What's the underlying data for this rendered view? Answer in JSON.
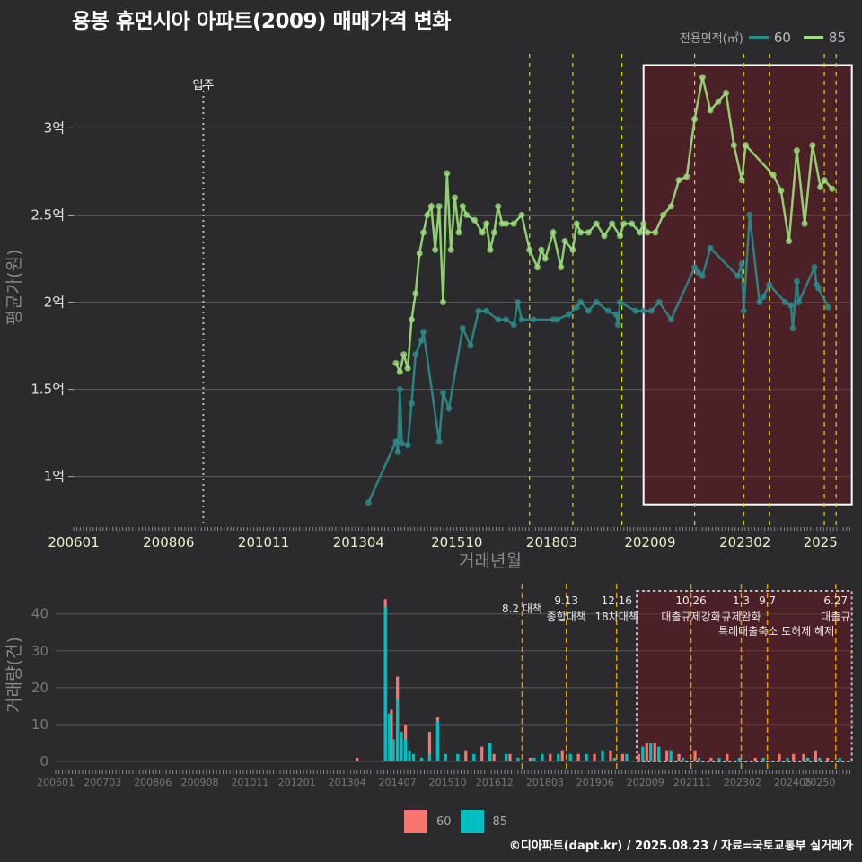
{
  "title": "용봉 휴먼시아 아파트(2009) 매매가격 변화",
  "legend_top": {
    "title": "전용면적(㎡)",
    "items": [
      {
        "label": "60",
        "color": "#2a8c8c"
      },
      {
        "label": "85",
        "color": "#9be07a"
      }
    ]
  },
  "legend_bottom": {
    "items": [
      {
        "label": "60",
        "color": "#f8766d"
      },
      {
        "label": "85",
        "color": "#00bfc4"
      }
    ]
  },
  "footer": "©디아파트(dapt.kr) / 2025.08.23 / 자료=국토교통부 실거래가",
  "chart_data": [
    {
      "type": "line",
      "title": "용봉 휴먼시아 아파트(2009) 매매가격 변화",
      "xlabel": "거래년월",
      "ylabel": "평균가(원)",
      "x_ticks": [
        "200601",
        "200806",
        "201011",
        "201304",
        "201510",
        "201803",
        "202009",
        "202302",
        "2025"
      ],
      "y_ticks": [
        {
          "v": 1.0,
          "label": "1억"
        },
        {
          "v": 1.5,
          "label": "1.5억"
        },
        {
          "v": 2.0,
          "label": "2억"
        },
        {
          "v": 2.5,
          "label": "2.5억"
        },
        {
          "v": 3.0,
          "label": "3억"
        }
      ],
      "xlim": [
        2006.0,
        2025.83
      ],
      "ylim": [
        0.72,
        3.45
      ],
      "move_in": {
        "x": 2009.3,
        "label": "입주"
      },
      "event_lines": [
        2017.6,
        2018.7,
        2019.95,
        2021.8,
        2023.05,
        2023.7,
        2025.1,
        2025.4
      ],
      "highlight": {
        "x0": 2020.5,
        "x1": 2025.8,
        "y0": 0.84,
        "y1": 3.36
      },
      "series": [
        {
          "name": "60",
          "color": "#2a8c8c",
          "points": [
            [
              2013.5,
              0.85
            ],
            [
              2014.2,
              1.2
            ],
            [
              2014.25,
              1.14
            ],
            [
              2014.3,
              1.5
            ],
            [
              2014.35,
              1.19
            ],
            [
              2014.5,
              1.18
            ],
            [
              2014.6,
              1.42
            ],
            [
              2014.7,
              1.7
            ],
            [
              2014.85,
              1.78
            ],
            [
              2014.9,
              1.83
            ],
            [
              2015.3,
              1.2
            ],
            [
              2015.4,
              1.48
            ],
            [
              2015.55,
              1.39
            ],
            [
              2015.9,
              1.85
            ],
            [
              2016.1,
              1.75
            ],
            [
              2016.3,
              1.95
            ],
            [
              2016.5,
              1.95
            ],
            [
              2016.8,
              1.9
            ],
            [
              2017.0,
              1.9
            ],
            [
              2017.2,
              1.87
            ],
            [
              2017.3,
              2.0
            ],
            [
              2017.4,
              1.9
            ],
            [
              2017.7,
              1.9
            ],
            [
              2018.2,
              1.9
            ],
            [
              2018.3,
              1.9
            ],
            [
              2018.6,
              1.93
            ],
            [
              2018.8,
              1.97
            ],
            [
              2018.9,
              2.0
            ],
            [
              2019.1,
              1.95
            ],
            [
              2019.3,
              2.0
            ],
            [
              2019.6,
              1.95
            ],
            [
              2019.8,
              1.93
            ],
            [
              2019.85,
              1.87
            ],
            [
              2019.9,
              2.0
            ],
            [
              2020.3,
              1.95
            ],
            [
              2020.5,
              1.95
            ],
            [
              2020.7,
              1.95
            ],
            [
              2020.9,
              2.0
            ],
            [
              2021.2,
              1.9
            ],
            [
              2021.8,
              2.2
            ],
            [
              2021.9,
              2.17
            ],
            [
              2022.0,
              2.15
            ],
            [
              2022.2,
              2.31
            ],
            [
              2022.9,
              2.15
            ],
            [
              2023.0,
              2.22
            ],
            [
              2023.05,
              1.95
            ],
            [
              2023.2,
              2.5
            ],
            [
              2023.45,
              2.0
            ],
            [
              2023.55,
              2.03
            ],
            [
              2023.7,
              2.1
            ],
            [
              2024.1,
              2.0
            ],
            [
              2024.25,
              1.98
            ],
            [
              2024.3,
              1.85
            ],
            [
              2024.4,
              2.12
            ],
            [
              2024.45,
              2.0
            ],
            [
              2024.85,
              2.2
            ],
            [
              2024.9,
              2.1
            ],
            [
              2024.95,
              2.08
            ],
            [
              2025.2,
              1.97
            ]
          ]
        },
        {
          "name": "85",
          "color": "#9be07a",
          "points": [
            [
              2014.2,
              1.65
            ],
            [
              2014.3,
              1.6
            ],
            [
              2014.4,
              1.7
            ],
            [
              2014.5,
              1.62
            ],
            [
              2014.6,
              1.9
            ],
            [
              2014.7,
              2.05
            ],
            [
              2014.8,
              2.28
            ],
            [
              2014.9,
              2.4
            ],
            [
              2015.0,
              2.5
            ],
            [
              2015.1,
              2.55
            ],
            [
              2015.2,
              2.3
            ],
            [
              2015.3,
              2.55
            ],
            [
              2015.4,
              2.0
            ],
            [
              2015.5,
              2.74
            ],
            [
              2015.6,
              2.3
            ],
            [
              2015.7,
              2.6
            ],
            [
              2015.8,
              2.4
            ],
            [
              2015.9,
              2.55
            ],
            [
              2016.0,
              2.5
            ],
            [
              2016.2,
              2.47
            ],
            [
              2016.4,
              2.4
            ],
            [
              2016.5,
              2.45
            ],
            [
              2016.6,
              2.3
            ],
            [
              2016.7,
              2.4
            ],
            [
              2016.8,
              2.55
            ],
            [
              2016.9,
              2.45
            ],
            [
              2017.0,
              2.45
            ],
            [
              2017.2,
              2.45
            ],
            [
              2017.4,
              2.5
            ],
            [
              2017.6,
              2.3
            ],
            [
              2017.8,
              2.2
            ],
            [
              2017.9,
              2.3
            ],
            [
              2018.0,
              2.25
            ],
            [
              2018.2,
              2.4
            ],
            [
              2018.4,
              2.2
            ],
            [
              2018.5,
              2.35
            ],
            [
              2018.7,
              2.3
            ],
            [
              2018.8,
              2.45
            ],
            [
              2018.9,
              2.4
            ],
            [
              2019.1,
              2.4
            ],
            [
              2019.3,
              2.45
            ],
            [
              2019.5,
              2.38
            ],
            [
              2019.7,
              2.45
            ],
            [
              2019.9,
              2.38
            ],
            [
              2020.0,
              2.45
            ],
            [
              2020.2,
              2.45
            ],
            [
              2020.4,
              2.4
            ],
            [
              2020.5,
              2.45
            ],
            [
              2020.6,
              2.4
            ],
            [
              2020.8,
              2.4
            ],
            [
              2021.0,
              2.5
            ],
            [
              2021.2,
              2.55
            ],
            [
              2021.4,
              2.7
            ],
            [
              2021.6,
              2.72
            ],
            [
              2021.8,
              3.05
            ],
            [
              2022.0,
              3.29
            ],
            [
              2022.2,
              3.1
            ],
            [
              2022.4,
              3.15
            ],
            [
              2022.6,
              3.2
            ],
            [
              2022.8,
              2.9
            ],
            [
              2023.0,
              2.7
            ],
            [
              2023.1,
              2.9
            ],
            [
              2023.8,
              2.73
            ],
            [
              2024.0,
              2.64
            ],
            [
              2024.2,
              2.35
            ],
            [
              2024.4,
              2.87
            ],
            [
              2024.6,
              2.45
            ],
            [
              2024.8,
              2.9
            ],
            [
              2025.0,
              2.66
            ],
            [
              2025.1,
              2.7
            ],
            [
              2025.3,
              2.65
            ]
          ]
        }
      ]
    },
    {
      "type": "bar",
      "ylabel": "거래량(건)",
      "x_ticks": [
        "200601",
        "200703",
        "200806",
        "200908",
        "201011",
        "201201",
        "201304",
        "201407",
        "201510",
        "201612",
        "201803",
        "201906",
        "202009",
        "202111",
        "202302",
        "202405",
        "20250"
      ],
      "y_ticks": [
        0,
        10,
        20,
        30,
        40
      ],
      "xlim": [
        2006.0,
        2025.83
      ],
      "ylim": [
        0,
        47
      ],
      "highlight": {
        "x0": 2020.45,
        "x1": 2025.8
      },
      "events": [
        {
          "x": 2017.6,
          "date": "8.2",
          "label": "8.2 대책",
          "line2": ""
        },
        {
          "x": 2018.7,
          "date": "9.13",
          "label": "종합대책",
          "line2": ""
        },
        {
          "x": 2019.95,
          "date": "12.16",
          "label": "18차대책",
          "line2": ""
        },
        {
          "x": 2021.8,
          "date": "10.26",
          "label": "대출규제강화",
          "line2": ""
        },
        {
          "x": 2023.05,
          "date": "1.3",
          "label": "규제완화",
          "line2": ""
        },
        {
          "x": 2023.7,
          "date": "9.7",
          "label": "",
          "line2": "특례대출축소 토허제 해제"
        },
        {
          "x": 2025.4,
          "date": "6.27",
          "label": "대출규",
          "line2": ""
        }
      ],
      "series": [
        {
          "name": "60",
          "color": "#f8766d",
          "points": [
            [
              2013.5,
              1
            ],
            [
              2014.2,
              44
            ],
            [
              2014.35,
              14
            ],
            [
              2014.5,
              23
            ],
            [
              2014.7,
              10
            ],
            [
              2015.3,
              8
            ],
            [
              2015.5,
              12
            ],
            [
              2016.2,
              3
            ],
            [
              2016.6,
              4
            ],
            [
              2016.9,
              2
            ],
            [
              2017.3,
              2
            ],
            [
              2017.8,
              1
            ],
            [
              2018.3,
              2
            ],
            [
              2018.6,
              3
            ],
            [
              2019.0,
              2
            ],
            [
              2019.4,
              2
            ],
            [
              2019.8,
              3
            ],
            [
              2020.1,
              2
            ],
            [
              2020.5,
              2
            ],
            [
              2020.7,
              5
            ],
            [
              2020.9,
              5
            ],
            [
              2021.2,
              3
            ],
            [
              2021.5,
              2
            ],
            [
              2021.9,
              3
            ],
            [
              2022.3,
              1
            ],
            [
              2022.7,
              2
            ],
            [
              2023.4,
              1
            ],
            [
              2024.0,
              2
            ],
            [
              2024.35,
              2
            ],
            [
              2024.6,
              2
            ],
            [
              2024.9,
              3
            ],
            [
              2025.2,
              1
            ]
          ]
        },
        {
          "name": "85",
          "color": "#00bfc4",
          "points": [
            [
              2014.2,
              42
            ],
            [
              2014.3,
              13
            ],
            [
              2014.4,
              6
            ],
            [
              2014.5,
              17
            ],
            [
              2014.6,
              8
            ],
            [
              2014.7,
              6
            ],
            [
              2014.8,
              3
            ],
            [
              2014.9,
              2
            ],
            [
              2015.1,
              1
            ],
            [
              2015.3,
              2
            ],
            [
              2015.5,
              11
            ],
            [
              2015.7,
              2
            ],
            [
              2016.0,
              2
            ],
            [
              2016.4,
              2
            ],
            [
              2016.8,
              5
            ],
            [
              2017.2,
              2
            ],
            [
              2017.5,
              1
            ],
            [
              2017.9,
              1
            ],
            [
              2018.1,
              2
            ],
            [
              2018.5,
              2
            ],
            [
              2018.8,
              2
            ],
            [
              2019.2,
              2
            ],
            [
              2019.6,
              3
            ],
            [
              2019.9,
              1
            ],
            [
              2020.2,
              2
            ],
            [
              2020.6,
              4
            ],
            [
              2020.8,
              5
            ],
            [
              2021.0,
              4
            ],
            [
              2021.3,
              3
            ],
            [
              2021.6,
              1
            ],
            [
              2022.0,
              1
            ],
            [
              2022.5,
              1
            ],
            [
              2023.0,
              1
            ],
            [
              2023.6,
              1
            ],
            [
              2024.2,
              1
            ],
            [
              2024.7,
              1
            ],
            [
              2025.0,
              1
            ],
            [
              2025.5,
              1
            ]
          ]
        }
      ]
    }
  ]
}
